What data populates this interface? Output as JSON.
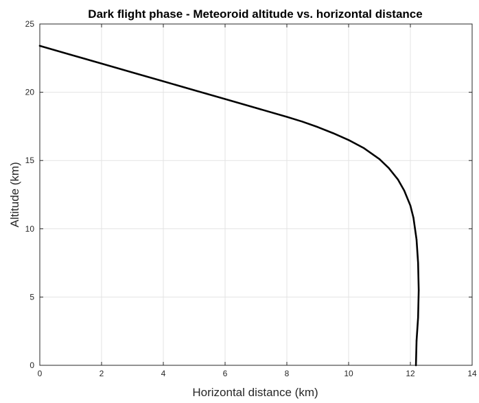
{
  "chart_data": {
    "type": "line",
    "title": "Dark flight phase - Meteoroid altitude vs. horizontal distance",
    "xlabel": "Horizontal distance (km)",
    "ylabel": "Altitude (km)",
    "xlim": [
      0,
      14
    ],
    "ylim": [
      0,
      25
    ],
    "xticks": [
      "0",
      "2",
      "4",
      "6",
      "8",
      "10",
      "12",
      "14"
    ],
    "yticks": [
      "0",
      "5",
      "10",
      "15",
      "20",
      "25"
    ],
    "grid": true,
    "line_color": "#000000",
    "series": [
      {
        "x": [
          0,
          1,
          2,
          3,
          4,
          5,
          6,
          7,
          8,
          8.5,
          9,
          9.5,
          10,
          10.5,
          11,
          11.3,
          11.6,
          11.8,
          12.0,
          12.1,
          12.2,
          12.25,
          12.27,
          12.25,
          12.2,
          12.18
        ],
        "y": [
          23.4,
          22.75,
          22.1,
          21.45,
          20.8,
          20.15,
          19.5,
          18.85,
          18.2,
          17.85,
          17.45,
          17.0,
          16.5,
          15.9,
          15.1,
          14.45,
          13.6,
          12.8,
          11.7,
          10.8,
          9.2,
          7.5,
          5.5,
          3.5,
          1.8,
          0
        ]
      }
    ]
  }
}
